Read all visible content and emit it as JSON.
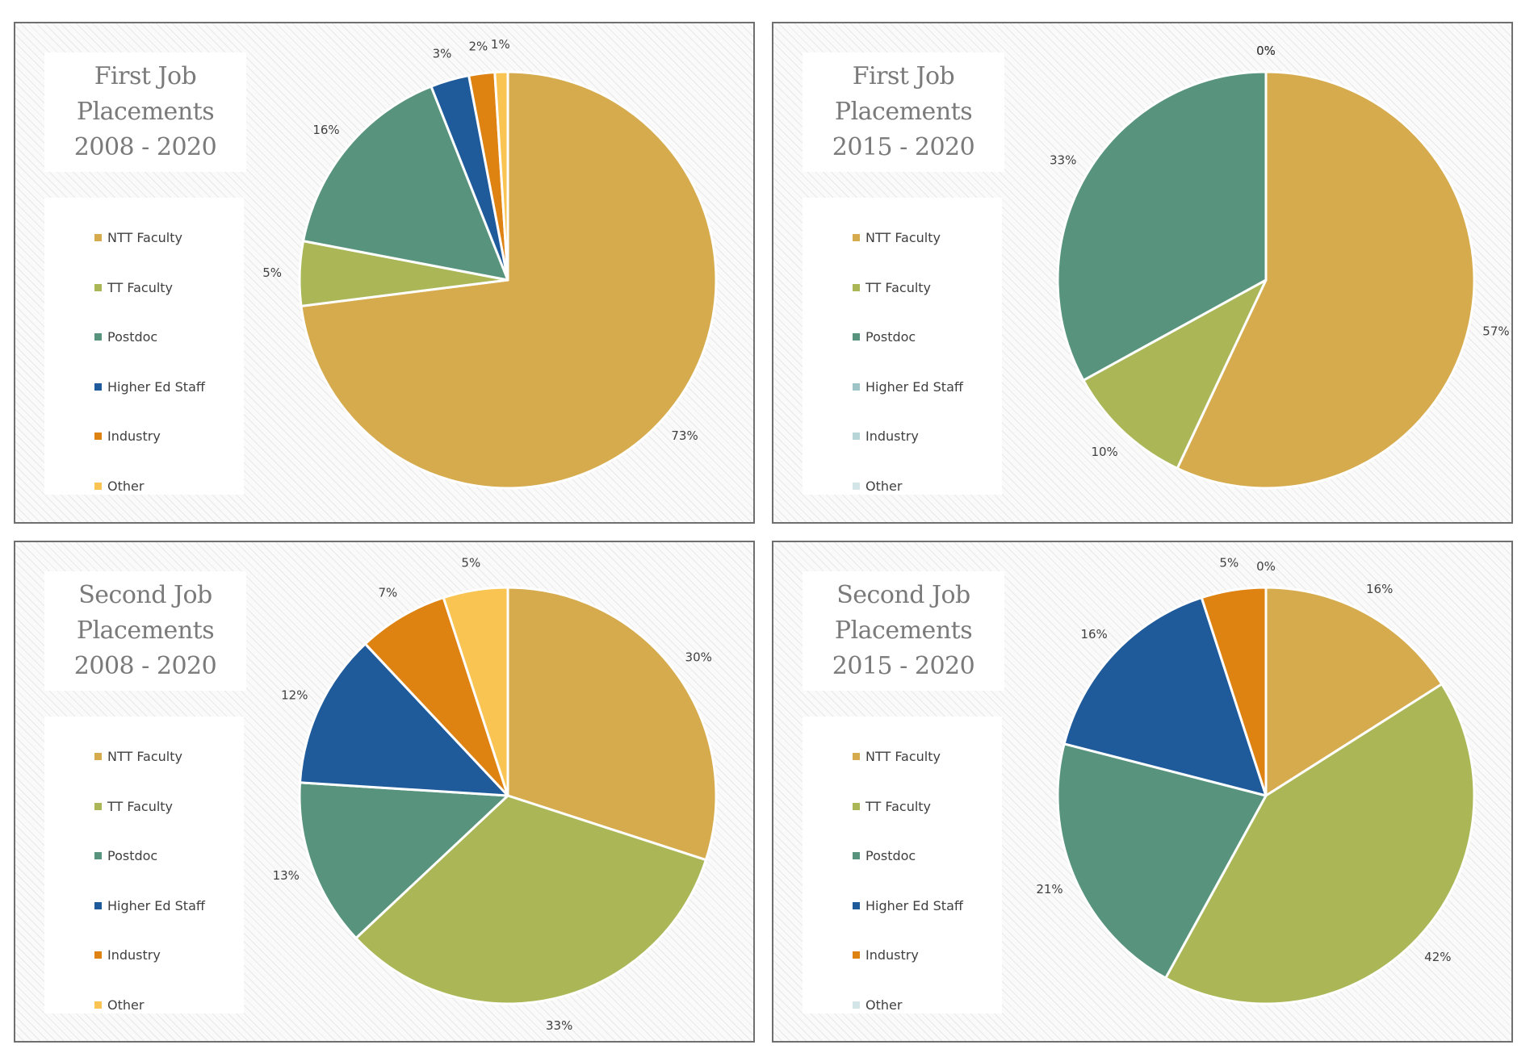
{
  "colors": {
    "NTT Faculty": "#d6ab4e",
    "TT Faculty": "#abb657",
    "Postdoc": "#58947d",
    "Higher Ed Staff": "#1f5b9b",
    "Industry": "#de8212",
    "Other": "#fac452",
    "Higher Ed Staff (faded)": "#9ec4c8",
    "Industry (faded)": "#b7d4d6",
    "Other (faded)": "#d3e5e7"
  },
  "panels": [
    {
      "title_lines": [
        "First Job",
        "Placements",
        "2008 - 2020"
      ],
      "legend": [
        {
          "label": "NTT Faculty",
          "color": "#d6ab4e"
        },
        {
          "label": "TT Faculty",
          "color": "#abb657"
        },
        {
          "label": "Postdoc",
          "color": "#58947d"
        },
        {
          "label": "Higher Ed Staff",
          "color": "#1f5b9b"
        },
        {
          "label": "Industry",
          "color": "#de8212"
        },
        {
          "label": "Other",
          "color": "#fac452"
        }
      ]
    },
    {
      "title_lines": [
        "First Job",
        "Placements",
        "2015 - 2020"
      ],
      "legend": [
        {
          "label": "NTT Faculty",
          "color": "#d6ab4e"
        },
        {
          "label": "TT Faculty",
          "color": "#abb657"
        },
        {
          "label": "Postdoc",
          "color": "#58947d"
        },
        {
          "label": "Higher Ed Staff",
          "color": "#9ec4c8"
        },
        {
          "label": "Industry",
          "color": "#b7d4d6"
        },
        {
          "label": "Other",
          "color": "#d3e5e7"
        }
      ]
    },
    {
      "title_lines": [
        "Second Job",
        "Placements",
        "2008 - 2020"
      ],
      "legend": [
        {
          "label": "NTT Faculty",
          "color": "#d6ab4e"
        },
        {
          "label": "TT Faculty",
          "color": "#abb657"
        },
        {
          "label": "Postdoc",
          "color": "#58947d"
        },
        {
          "label": "Higher Ed Staff",
          "color": "#1f5b9b"
        },
        {
          "label": "Industry",
          "color": "#de8212"
        },
        {
          "label": "Other",
          "color": "#fac452"
        }
      ]
    },
    {
      "title_lines": [
        "Second Job",
        "Placements",
        "2015 - 2020"
      ],
      "legend": [
        {
          "label": "NTT Faculty",
          "color": "#d6ab4e"
        },
        {
          "label": "TT Faculty",
          "color": "#abb657"
        },
        {
          "label": "Postdoc",
          "color": "#58947d"
        },
        {
          "label": "Higher Ed Staff",
          "color": "#1f5b9b"
        },
        {
          "label": "Industry",
          "color": "#de8212"
        },
        {
          "label": "Other",
          "color": "#d3e5e7"
        }
      ]
    }
  ],
  "chart_data": [
    {
      "type": "pie",
      "title": "First Job Placements 2008 - 2020",
      "categories": [
        "NTT Faculty",
        "TT Faculty",
        "Postdoc",
        "Higher Ed Staff",
        "Industry",
        "Other"
      ],
      "values": [
        73,
        5,
        16,
        3,
        2,
        1
      ],
      "labels": [
        "73%",
        "5%",
        "16%",
        "3%",
        "2%",
        "1%"
      ],
      "legend_position": "left"
    },
    {
      "type": "pie",
      "title": "First Job Placements 2015 - 2020",
      "categories": [
        "NTT Faculty",
        "TT Faculty",
        "Postdoc",
        "Higher Ed Staff",
        "Industry",
        "Other"
      ],
      "values": [
        57,
        10,
        33,
        0,
        0,
        0
      ],
      "labels": [
        "57%",
        "10%",
        "33%",
        "0%",
        "0%",
        "0%"
      ],
      "legend_position": "left"
    },
    {
      "type": "pie",
      "title": "Second Job Placements 2008 - 2020",
      "categories": [
        "NTT Faculty",
        "TT Faculty",
        "Postdoc",
        "Higher Ed Staff",
        "Industry",
        "Other"
      ],
      "values": [
        30,
        33,
        13,
        12,
        7,
        5
      ],
      "labels": [
        "30%",
        "33%",
        "13%",
        "12%",
        "7%",
        "5%"
      ],
      "legend_position": "left"
    },
    {
      "type": "pie",
      "title": "Second Job Placements 2015 - 2020",
      "categories": [
        "NTT Faculty",
        "TT Faculty",
        "Postdoc",
        "Higher Ed Staff",
        "Industry",
        "Other"
      ],
      "values": [
        16,
        42,
        21,
        16,
        5,
        0
      ],
      "labels": [
        "16%",
        "42%",
        "21%",
        "16%",
        "5%",
        "0%"
      ],
      "legend_position": "left"
    }
  ]
}
